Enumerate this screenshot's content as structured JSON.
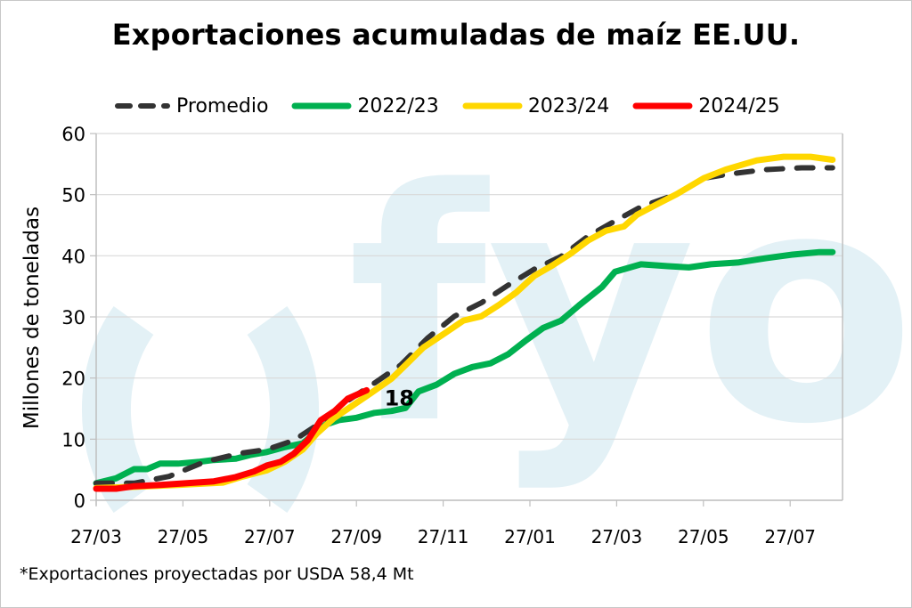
{
  "chart_data": {
    "type": "line",
    "title": "Exportaciones acumuladas de maíz EE.UU.",
    "xlabel": "",
    "ylabel": "Millones de toneladas",
    "ylim": [
      0,
      60
    ],
    "yticks": [
      "0",
      "10",
      "20",
      "30",
      "40",
      "50",
      "60"
    ],
    "xtick_labels": [
      "27/03",
      "27/05",
      "27/07",
      "27/09",
      "27/11",
      "27/01",
      "27/03",
      "27/05",
      "27/07"
    ],
    "x_unit": "weeks since 27/03",
    "xlim": [
      0,
      74.8
    ],
    "grid": true,
    "legend_position": "top",
    "annotation": {
      "text": "18",
      "series": "2024/25"
    },
    "footnote": "*Exportaciones proyectadas por USDA 58,4 Mt",
    "watermark": "fyo",
    "series": [
      {
        "name": "Promedio",
        "color": "#333333",
        "style": "dashed",
        "x": [
          0,
          3.8,
          7.3,
          10.9,
          14.5,
          17.1,
          19.8,
          22.5,
          25.2,
          27.9,
          30.5,
          33.2,
          35.9,
          38.6,
          41.3,
          43.9,
          46.6,
          49.3,
          52,
          54.6,
          58.2,
          60.9,
          63.6,
          67.1,
          70.7,
          73.8
        ],
        "y": [
          2.8,
          2.8,
          3.9,
          6.3,
          7.7,
          8.3,
          9.8,
          12.7,
          16.3,
          19.2,
          22.1,
          26.5,
          30.1,
          32.3,
          35.2,
          37.8,
          39.9,
          43.2,
          45.7,
          48.0,
          50.1,
          52.7,
          53.4,
          54.1,
          54.4,
          54.4
        ]
      },
      {
        "name": "2022/23",
        "color": "#00b050",
        "style": "solid",
        "x": [
          0,
          2,
          3.8,
          5.1,
          6.4,
          8.2,
          10.4,
          11.8,
          14,
          15.4,
          17.1,
          18.9,
          20.7,
          22.1,
          23,
          24.3,
          26.1,
          27.9,
          29.6,
          31,
          32.3,
          34.1,
          35.9,
          37.7,
          39.5,
          41.3,
          43.1,
          44.8,
          46.6,
          48.4,
          50.7,
          52,
          54.6,
          57.3,
          59.4,
          61.6,
          64.3,
          67.1,
          69.8,
          72.5,
          73.8
        ],
        "y": [
          2.8,
          3.6,
          5.1,
          5.1,
          6.0,
          6.0,
          6.3,
          6.6,
          6.8,
          7.4,
          7.9,
          8.7,
          9.3,
          11.2,
          12.4,
          13.1,
          13.5,
          14.3,
          14.6,
          15.1,
          17.8,
          18.9,
          20.7,
          21.8,
          22.4,
          23.9,
          26.2,
          28.2,
          29.4,
          31.9,
          34.9,
          37.4,
          38.6,
          38.3,
          38.1,
          38.6,
          38.9,
          39.6,
          40.2,
          40.6,
          40.6
        ]
      },
      {
        "name": "2023/24",
        "color": "#ffd700",
        "style": "solid",
        "x": [
          0,
          3.8,
          8.2,
          12.7,
          14.5,
          17.1,
          18.9,
          20.7,
          22.1,
          23.8,
          25.6,
          27.5,
          29.6,
          31,
          32.8,
          35,
          36.8,
          38.6,
          40.4,
          42.1,
          43.9,
          45.7,
          47.5,
          49.3,
          51.1,
          52.9,
          54.2,
          56.4,
          58.2,
          60.9,
          63.1,
          66.2,
          68.9,
          71.6,
          73.8
        ],
        "y": [
          2.0,
          2.2,
          2.5,
          2.9,
          3.8,
          4.9,
          6.3,
          8.3,
          10.9,
          13.4,
          15.4,
          17.5,
          19.9,
          22.1,
          25.0,
          27.4,
          29.4,
          30.1,
          32.0,
          34.0,
          36.7,
          38.4,
          40.3,
          42.5,
          44.1,
          44.8,
          46.7,
          48.6,
          50.1,
          52.7,
          54.1,
          55.6,
          56.2,
          56.2,
          55.7
        ]
      },
      {
        "name": "2024/25",
        "color": "#ff0000",
        "style": "solid",
        "x": [
          0,
          2,
          3.8,
          6.4,
          9.1,
          11.8,
          14,
          15.8,
          17.1,
          18.5,
          19.8,
          21.2,
          22.5,
          23.9,
          25.2,
          27.1
        ],
        "y": [
          1.9,
          1.9,
          2.3,
          2.5,
          2.8,
          3.1,
          3.8,
          4.7,
          5.7,
          6.3,
          7.6,
          9.8,
          13.1,
          14.6,
          16.6,
          18.0
        ]
      }
    ]
  }
}
